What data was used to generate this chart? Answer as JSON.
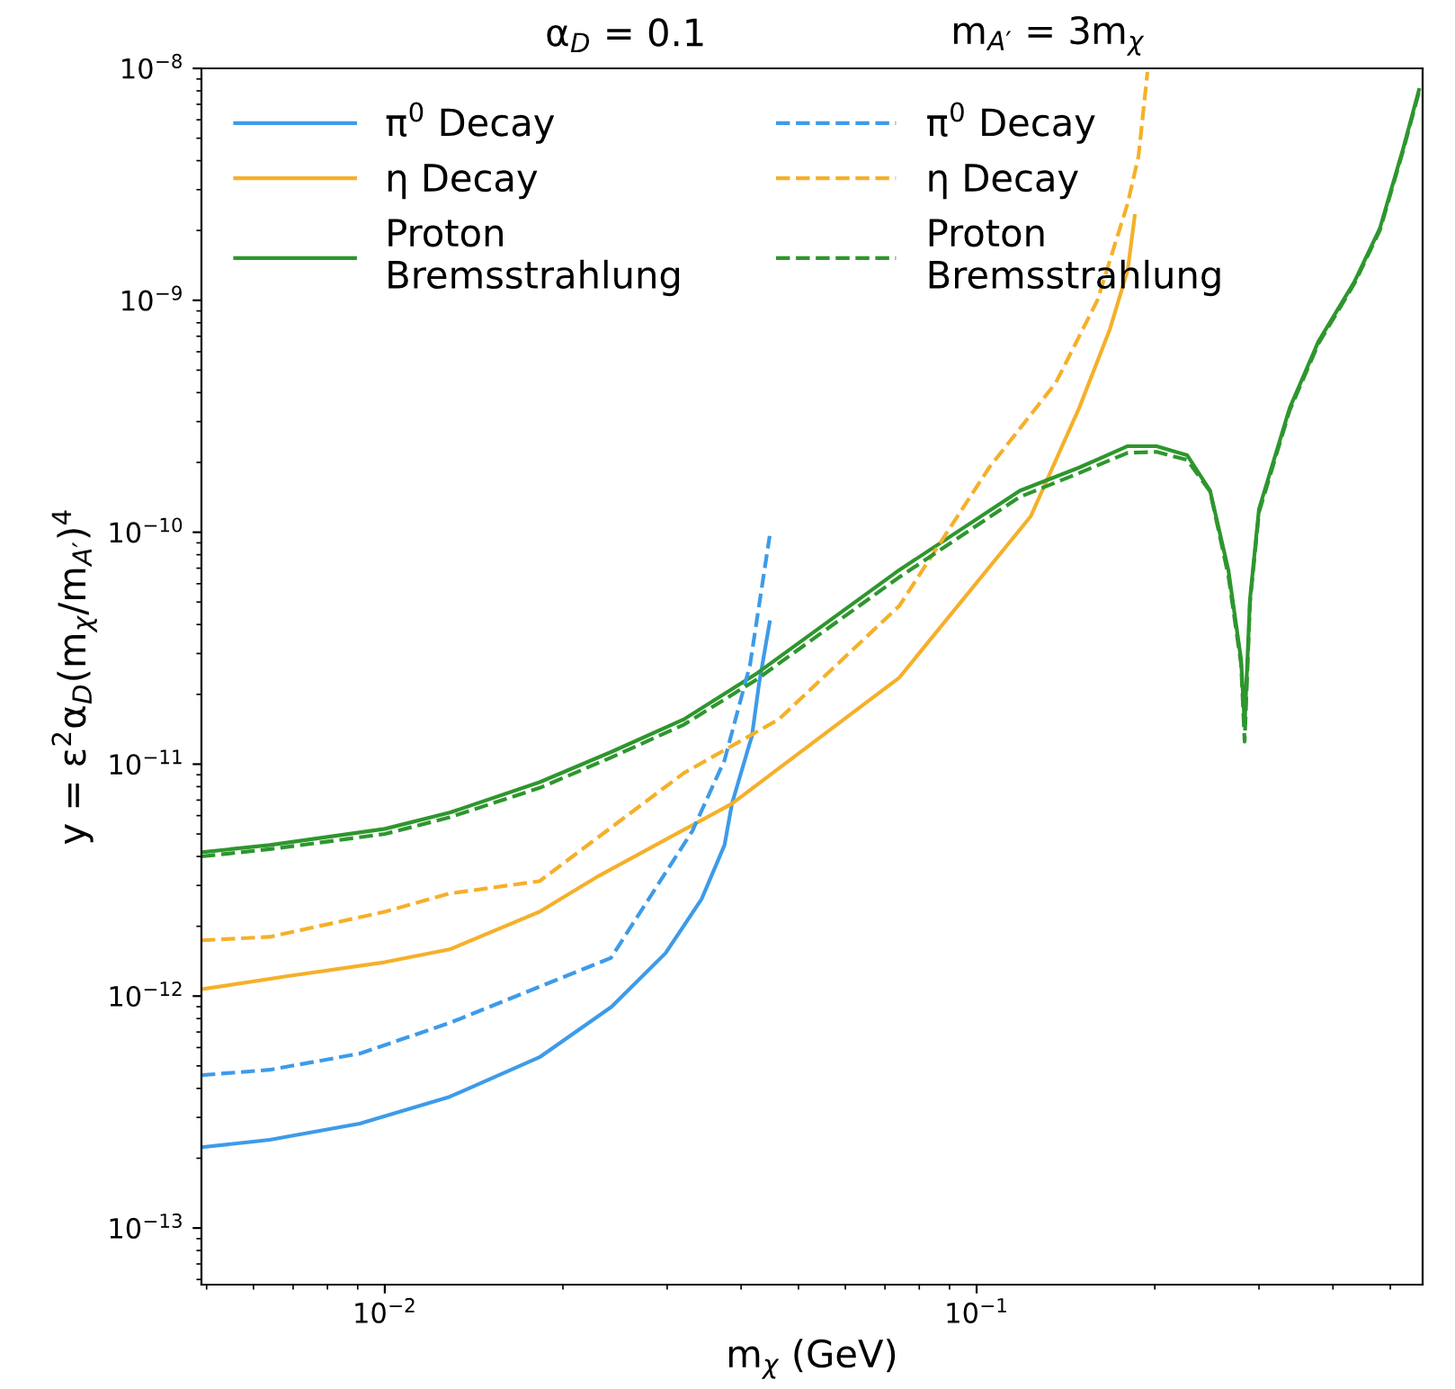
{
  "chart_data": {
    "type": "line",
    "title": "α$_{D}$ = 0.1",
    "subtitle": "m$_{A′}$ = 3m$_{χ}$",
    "xlabel": "m$_{χ}$ (GeV)",
    "ylabel": "y = ε$^{2}$α$_{D}$(m$_{χ}$/m$_{A′}$)$^{4}$",
    "log": "xy",
    "xlim": [
      0.0049,
      0.567
    ],
    "ylim": [
      5.7e-14,
      1e-08
    ],
    "xticks": [
      {
        "value": 0.01,
        "label": "10$^{−2}$"
      },
      {
        "value": 0.1,
        "label": "10$^{−1}$"
      }
    ],
    "yticks": [
      {
        "value": 1e-13,
        "label": "10$^{−13}$"
      },
      {
        "value": 1e-12,
        "label": "10$^{−12}$"
      },
      {
        "value": 1e-11,
        "label": "10$^{−11}$"
      },
      {
        "value": 1e-10,
        "label": "10$^{−10}$"
      },
      {
        "value": 1e-09,
        "label": "10$^{−9}$"
      },
      {
        "value": 1e-08,
        "label": "10$^{−8}$"
      }
    ],
    "grid": false,
    "legend": "top left",
    "series": [
      {
        "name": "π$^{0}$ Decay",
        "color": "#3d9be9",
        "line_style": "solid",
        "x": [
          0.0049,
          0.00639,
          0.00907,
          0.01287,
          0.01826,
          0.02415,
          0.0298,
          0.0343,
          0.0375,
          0.0386,
          0.0414,
          0.0417,
          0.0429,
          0.0447
        ],
        "values": [
          2.23e-13,
          2.4e-13,
          2.82e-13,
          3.68e-13,
          5.45e-13,
          8.98e-13,
          1.53e-12,
          2.62e-12,
          4.48e-12,
          6.75e-12,
          1.24e-11,
          1.31e-11,
          2.23e-11,
          4.09e-11
        ]
      },
      {
        "name": "η Decay",
        "color": "#f5b02a",
        "line_style": "solid",
        "x": [
          0.0049,
          0.00686,
          0.01,
          0.01287,
          0.01826,
          0.023,
          0.0386,
          0.074,
          0.1234,
          0.149,
          0.168,
          0.18,
          0.185
        ],
        "values": [
          1.07e-12,
          1.22e-12,
          1.4e-12,
          1.59e-12,
          2.31e-12,
          3.3e-12,
          6.75e-12,
          2.36e-11,
          1.17e-10,
          3.43e-10,
          7.52e-10,
          1.35e-09,
          2.31e-09
        ]
      },
      {
        "name": "Proton\nBremsstrahlung",
        "color": "#2e962e",
        "line_style": "solid",
        "x": [
          0.0049,
          0.00639,
          0.01,
          0.01287,
          0.01826,
          0.02415,
          0.032,
          0.0423,
          0.074,
          0.1183,
          0.149,
          0.18,
          0.2014,
          0.2268,
          0.248,
          0.2663,
          0.2798,
          0.2837,
          0.2897,
          0.3,
          0.338,
          0.378,
          0.4347,
          0.48,
          0.5253,
          0.559
        ],
        "values": [
          4.17e-12,
          4.48e-12,
          5.26e-12,
          6.18e-12,
          8.36e-12,
          1.13e-11,
          1.56e-11,
          2.44e-11,
          6.87e-11,
          1.51e-10,
          1.9e-10,
          2.35e-10,
          2.35e-10,
          2.15e-10,
          1.51e-10,
          6.87e-11,
          2.82e-11,
          1.48e-11,
          5.16e-11,
          1.26e-10,
          3.43e-10,
          6.64e-10,
          1.2e-09,
          2.04e-09,
          4.48e-09,
          8.07e-09
        ]
      },
      {
        "name": "π$^{0}$ Decay",
        "color": "#3d9be9",
        "line_style": "dashed",
        "x": [
          0.0049,
          0.00639,
          0.00907,
          0.01287,
          0.0241,
          0.0331,
          0.0375,
          0.0414,
          0.0447
        ],
        "values": [
          4.56e-13,
          4.81e-13,
          5.65e-13,
          7.66e-13,
          1.46e-12,
          5.16e-12,
          1.04e-11,
          2.67e-11,
          9.64e-11
        ]
      },
      {
        "name": "η Decay",
        "color": "#f5b02a",
        "line_style": "dashed",
        "x": [
          0.0049,
          0.00639,
          0.01,
          0.01287,
          0.01826,
          0.032,
          0.0463,
          0.074,
          0.105,
          0.136,
          0.16,
          0.18,
          0.1877,
          0.1944
        ],
        "values": [
          1.74e-12,
          1.8e-12,
          2.31e-12,
          2.77e-12,
          3.13e-12,
          9.15e-12,
          1.56e-11,
          4.81e-11,
          1.9e-10,
          4.4e-10,
          1e-09,
          2.62e-09,
          4.17e-09,
          9.65e-09
        ]
      },
      {
        "name": "Proton\nBremsstrahlung",
        "color": "#2e962e",
        "line_style": "dashed",
        "x": [
          0.0049,
          0.00639,
          0.01,
          0.01287,
          0.01826,
          0.02415,
          0.032,
          0.0423,
          0.074,
          0.1183,
          0.149,
          0.18,
          0.2014,
          0.2268,
          0.248,
          0.2663,
          0.2798,
          0.2837,
          0.2897,
          0.3,
          0.338,
          0.378,
          0.4347,
          0.48,
          0.5253,
          0.559
        ],
        "values": [
          4e-12,
          4.3e-12,
          5e-12,
          5.9e-12,
          7.9e-12,
          1.07e-11,
          1.48e-11,
          2.3e-11,
          6.4e-11,
          1.42e-10,
          1.8e-10,
          2.2e-10,
          2.22e-10,
          2.05e-10,
          1.5e-10,
          6.5e-11,
          2.7e-11,
          1.25e-11,
          5e-11,
          1.22e-10,
          3.35e-10,
          6.5e-10,
          1.18e-09,
          2e-09,
          4.4e-09,
          7.9e-09
        ]
      }
    ]
  }
}
